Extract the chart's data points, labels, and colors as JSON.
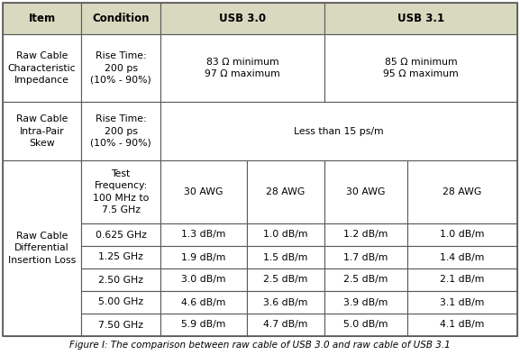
{
  "title": "Figure I: The comparison between raw cable of USB 3.0 and raw cable of USB 3.1",
  "header_bg": "#d9d9c0",
  "cell_bg": "#ffffff",
  "border_color": "#5a5a5a",
  "header_font_size": 8.5,
  "cell_font_size": 7.8,
  "title_font_size": 7.5,
  "columns_header": [
    "Item",
    "Condition",
    "USB 3.0",
    "USB 3.1"
  ],
  "rows": [
    {
      "item": "Raw Cable\nCharacteristic\nImpedance",
      "condition": "Rise Time:\n200 ps\n(10% - 90%)",
      "usb30": "83 Ω minimum\n97 Ω maximum",
      "usb31": "85 Ω minimum\n95 Ω maximum",
      "type": "impedance"
    },
    {
      "item": "Raw Cable\nIntra-Pair\nSkew",
      "condition": "Rise Time:\n200 ps\n(10% - 90%)",
      "value": "Less than 15 ps/m",
      "type": "skew"
    },
    {
      "item": "Raw Cable\nDifferential\nInsertion Loss",
      "sub_header_condition": "Test\nFrequency:\n100 MHz to\n7.5 GHz",
      "frequencies": [
        "0.625 GHz",
        "1.25 GHz",
        "2.50 GHz",
        "5.00 GHz",
        "7.50 GHz"
      ],
      "usb30_30awg": [
        "1.3 dB/m",
        "1.9 dB/m",
        "3.0 dB/m",
        "4.6 dB/m",
        "5.9 dB/m"
      ],
      "usb30_28awg": [
        "1.0 dB/m",
        "1.5 dB/m",
        "2.5 dB/m",
        "3.6 dB/m",
        "4.7 dB/m"
      ],
      "usb31_30awg": [
        "1.2 dB/m",
        "1.7 dB/m",
        "2.5 dB/m",
        "3.9 dB/m",
        "5.0 dB/m"
      ],
      "usb31_28awg": [
        "1.0 dB/m",
        "1.4 dB/m",
        "2.1 dB/m",
        "3.1 dB/m",
        "4.1 dB/m"
      ],
      "type": "insertion_loss"
    }
  ]
}
